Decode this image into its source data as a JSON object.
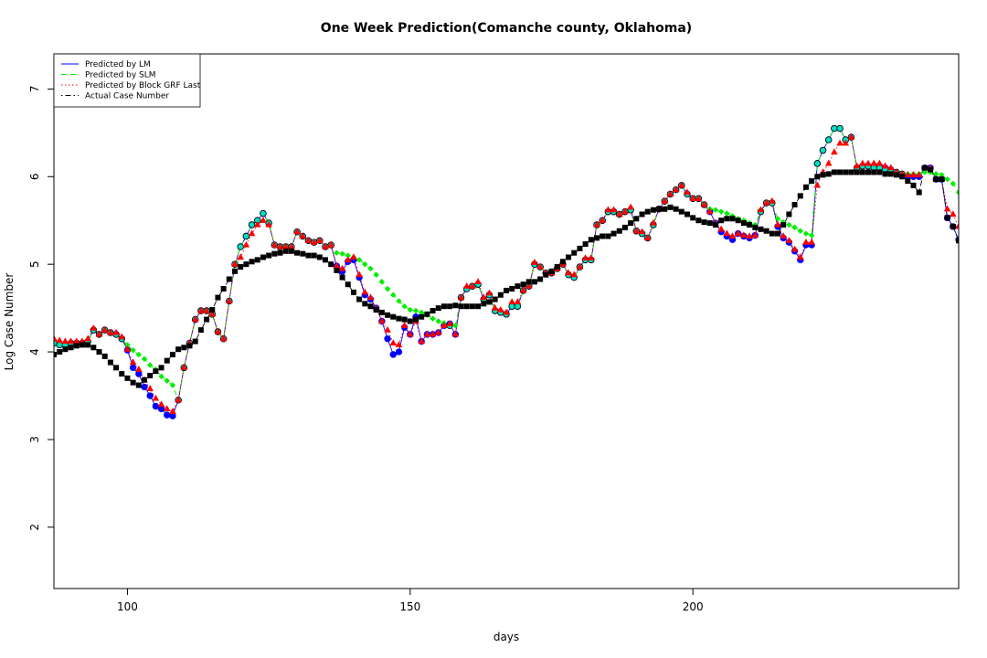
{
  "chart_data": {
    "type": "line",
    "title": "One Week Prediction(Comanche county, Oklahoma)",
    "xlabel": "days",
    "ylabel": "Log Case Number",
    "xlim": [
      87,
      247
    ],
    "ylim": [
      1.3,
      7.4
    ],
    "xticks": [
      100,
      150,
      200
    ],
    "yticks": [
      2,
      3,
      4,
      5,
      6,
      7
    ],
    "legend_position": "top-left",
    "legend": [
      {
        "name": "Predicted by LM",
        "color": "#0000ff",
        "dash": "solid"
      },
      {
        "name": "Predicted by SLM",
        "color": "#00ee00",
        "dash": "dashed"
      },
      {
        "name": "Predicted by Block GRF Last",
        "color": "#ff0000",
        "dash": "dotted"
      },
      {
        "name": "Actual Case Number",
        "color": "#000000",
        "dash": "dotdash"
      }
    ],
    "x": [
      87,
      88,
      89,
      90,
      91,
      92,
      93,
      94,
      95,
      96,
      97,
      98,
      99,
      100,
      101,
      102,
      103,
      104,
      105,
      106,
      107,
      108,
      109,
      110,
      111,
      112,
      113,
      114,
      115,
      116,
      117,
      118,
      119,
      120,
      121,
      122,
      123,
      124,
      125,
      126,
      127,
      128,
      129,
      130,
      131,
      132,
      133,
      134,
      135,
      136,
      137,
      138,
      139,
      140,
      141,
      142,
      143,
      144,
      145,
      146,
      147,
      148,
      149,
      150,
      151,
      152,
      153,
      154,
      155,
      156,
      157,
      158,
      159,
      160,
      161,
      162,
      163,
      164,
      165,
      166,
      167,
      168,
      169,
      170,
      171,
      172,
      173,
      174,
      175,
      176,
      177,
      178,
      179,
      180,
      181,
      182,
      183,
      184,
      185,
      186,
      187,
      188,
      189,
      190,
      191,
      192,
      193,
      194,
      195,
      196,
      197,
      198,
      199,
      200,
      201,
      202,
      203,
      204,
      205,
      206,
      207,
      208,
      209,
      210,
      211,
      212,
      213,
      214,
      215,
      216,
      217,
      218,
      219,
      220,
      221,
      222,
      223,
      224,
      225,
      226,
      227,
      228,
      229,
      230,
      231,
      232,
      233,
      234,
      235,
      236,
      237,
      238,
      239,
      240,
      241,
      242,
      243,
      244,
      245,
      246,
      247
    ],
    "series": [
      {
        "name": "Predicted by LM",
        "values": [
          4.1,
          4.08,
          4.08,
          4.1,
          4.1,
          4.1,
          4.12,
          4.25,
          4.2,
          4.25,
          4.22,
          4.2,
          4.15,
          4.02,
          3.82,
          3.75,
          3.6,
          3.5,
          3.38,
          3.35,
          3.28,
          3.27,
          3.45,
          3.82,
          4.1,
          4.37,
          4.47,
          4.47,
          4.43,
          4.23,
          4.15,
          4.58,
          5.0,
          5.2,
          5.32,
          5.45,
          5.5,
          5.58,
          5.47,
          5.22,
          5.2,
          5.2,
          5.2,
          5.37,
          5.32,
          5.27,
          5.25,
          5.27,
          5.2,
          5.22,
          4.98,
          4.92,
          5.03,
          5.05,
          4.85,
          4.65,
          4.6,
          4.5,
          4.35,
          4.15,
          3.97,
          4.0,
          4.28,
          4.2,
          4.4,
          4.12,
          4.2,
          4.2,
          4.22,
          4.3,
          4.32,
          4.2,
          4.62,
          4.72,
          4.75,
          4.77,
          4.6,
          4.65,
          4.47,
          4.45,
          4.43,
          4.52,
          4.52,
          4.7,
          4.75,
          5.0,
          4.97,
          4.9,
          4.9,
          4.95,
          5.0,
          4.88,
          4.85,
          4.97,
          5.05,
          5.05,
          5.45,
          5.5,
          5.6,
          5.6,
          5.57,
          5.6,
          5.62,
          5.38,
          5.35,
          5.3,
          5.45,
          5.63,
          5.72,
          5.8,
          5.85,
          5.9,
          5.8,
          5.75,
          5.75,
          5.68,
          5.6,
          5.47,
          5.37,
          5.32,
          5.28,
          5.35,
          5.32,
          5.3,
          5.33,
          5.6,
          5.7,
          5.7,
          5.43,
          5.3,
          5.25,
          5.15,
          5.05,
          5.22,
          5.22,
          6.15,
          6.3,
          6.42,
          6.55,
          6.55,
          6.42,
          6.45,
          6.1,
          6.12,
          6.12,
          6.12,
          6.12,
          6.1,
          6.08,
          6.05,
          6.02,
          6.0,
          6.0,
          6.0,
          6.1,
          6.1,
          5.97,
          5.97,
          5.53,
          5.43,
          5.28
        ]
      },
      {
        "name": "Predicted by SLM",
        "values": [
          4.1,
          4.08,
          4.08,
          4.1,
          4.1,
          4.1,
          4.12,
          4.25,
          4.2,
          4.25,
          4.22,
          4.2,
          4.15,
          4.08,
          4.02,
          3.97,
          3.92,
          3.85,
          3.8,
          3.72,
          3.67,
          3.62,
          3.45,
          3.82,
          4.1,
          4.37,
          4.47,
          4.47,
          4.43,
          4.23,
          4.15,
          4.58,
          5.0,
          5.2,
          5.32,
          5.45,
          5.5,
          5.58,
          5.47,
          5.22,
          5.2,
          5.2,
          5.2,
          5.37,
          5.32,
          5.27,
          5.25,
          5.27,
          5.2,
          5.22,
          5.13,
          5.12,
          5.1,
          5.08,
          5.05,
          5.0,
          4.95,
          4.88,
          4.8,
          4.72,
          4.65,
          4.58,
          4.52,
          4.48,
          4.47,
          4.45,
          4.42,
          4.38,
          4.35,
          4.33,
          4.3,
          4.3,
          4.62,
          4.72,
          4.75,
          4.77,
          4.6,
          4.65,
          4.47,
          4.45,
          4.43,
          4.52,
          4.52,
          4.7,
          4.75,
          5.0,
          4.97,
          4.9,
          4.9,
          4.95,
          5.0,
          4.88,
          4.85,
          4.97,
          5.05,
          5.05,
          5.45,
          5.5,
          5.6,
          5.6,
          5.57,
          5.6,
          5.62,
          5.38,
          5.35,
          5.3,
          5.45,
          5.63,
          5.72,
          5.8,
          5.85,
          5.9,
          5.8,
          5.75,
          5.75,
          5.68,
          5.63,
          5.62,
          5.6,
          5.58,
          5.55,
          5.52,
          5.5,
          5.47,
          5.45,
          5.6,
          5.7,
          5.7,
          5.52,
          5.48,
          5.45,
          5.42,
          5.38,
          5.35,
          5.33,
          6.15,
          6.3,
          6.42,
          6.55,
          6.55,
          6.42,
          6.45,
          6.1,
          6.12,
          6.12,
          6.1,
          6.1,
          6.08,
          6.07,
          6.05,
          6.03,
          6.03,
          6.03,
          6.03,
          6.05,
          6.05,
          6.03,
          6.02,
          5.97,
          5.92,
          5.82
        ]
      },
      {
        "name": "Predicted by Block GRF Last",
        "values": [
          4.15,
          4.13,
          4.12,
          4.12,
          4.12,
          4.12,
          4.15,
          4.27,
          4.2,
          4.25,
          4.22,
          4.22,
          4.17,
          4.03,
          3.88,
          3.8,
          3.68,
          3.58,
          3.47,
          3.4,
          3.35,
          3.32,
          3.45,
          3.82,
          4.1,
          4.37,
          4.47,
          4.47,
          4.43,
          4.23,
          4.15,
          4.58,
          5.0,
          5.08,
          5.22,
          5.35,
          5.45,
          5.5,
          5.45,
          5.22,
          5.2,
          5.2,
          5.2,
          5.37,
          5.32,
          5.27,
          5.25,
          5.27,
          5.2,
          5.22,
          4.98,
          4.95,
          5.05,
          5.08,
          4.88,
          4.68,
          4.62,
          4.5,
          4.35,
          4.25,
          4.1,
          4.08,
          4.3,
          4.2,
          4.35,
          4.12,
          4.2,
          4.2,
          4.22,
          4.3,
          4.32,
          4.2,
          4.62,
          4.75,
          4.75,
          4.8,
          4.62,
          4.67,
          4.5,
          4.48,
          4.45,
          4.57,
          4.57,
          4.7,
          4.75,
          5.02,
          4.97,
          4.9,
          4.9,
          4.95,
          5.0,
          4.9,
          4.88,
          4.97,
          5.07,
          5.07,
          5.45,
          5.5,
          5.62,
          5.62,
          5.57,
          5.6,
          5.65,
          5.38,
          5.37,
          5.3,
          5.47,
          5.63,
          5.72,
          5.8,
          5.85,
          5.9,
          5.82,
          5.75,
          5.75,
          5.68,
          5.6,
          5.47,
          5.4,
          5.35,
          5.32,
          5.35,
          5.33,
          5.32,
          5.33,
          5.62,
          5.7,
          5.72,
          5.45,
          5.32,
          5.27,
          5.17,
          5.08,
          5.25,
          5.25,
          5.9,
          6.05,
          6.15,
          6.28,
          6.38,
          6.38,
          6.45,
          6.12,
          6.15,
          6.15,
          6.15,
          6.15,
          6.12,
          6.1,
          6.05,
          6.03,
          6.02,
          6.02,
          6.02,
          6.1,
          6.1,
          5.97,
          5.97,
          5.63,
          5.57,
          5.43
        ]
      },
      {
        "name": "Actual Case Number",
        "values": [
          3.97,
          4.0,
          4.03,
          4.05,
          4.07,
          4.08,
          4.08,
          4.05,
          4.0,
          3.95,
          3.88,
          3.82,
          3.75,
          3.7,
          3.65,
          3.62,
          3.68,
          3.73,
          3.78,
          3.82,
          3.9,
          3.97,
          4.03,
          4.05,
          4.07,
          4.12,
          4.25,
          4.37,
          4.48,
          4.62,
          4.72,
          4.83,
          4.92,
          4.97,
          5.0,
          5.03,
          5.05,
          5.08,
          5.1,
          5.12,
          5.13,
          5.15,
          5.15,
          5.13,
          5.12,
          5.1,
          5.1,
          5.08,
          5.05,
          5.0,
          4.93,
          4.85,
          4.77,
          4.68,
          4.6,
          4.55,
          4.52,
          4.48,
          4.45,
          4.42,
          4.4,
          4.38,
          4.37,
          4.35,
          4.37,
          4.4,
          4.43,
          4.47,
          4.5,
          4.52,
          4.52,
          4.53,
          4.52,
          4.52,
          4.52,
          4.52,
          4.55,
          4.57,
          4.6,
          4.65,
          4.7,
          4.72,
          4.75,
          4.77,
          4.8,
          4.8,
          4.83,
          4.88,
          4.92,
          4.97,
          5.03,
          5.08,
          5.13,
          5.18,
          5.23,
          5.28,
          5.3,
          5.32,
          5.32,
          5.35,
          5.38,
          5.42,
          5.47,
          5.52,
          5.57,
          5.6,
          5.62,
          5.63,
          5.63,
          5.65,
          5.63,
          5.6,
          5.57,
          5.53,
          5.5,
          5.48,
          5.47,
          5.45,
          5.5,
          5.52,
          5.52,
          5.5,
          5.47,
          5.45,
          5.42,
          5.4,
          5.38,
          5.35,
          5.35,
          5.45,
          5.57,
          5.68,
          5.78,
          5.88,
          5.95,
          6.0,
          6.02,
          6.03,
          6.05,
          6.05,
          6.05,
          6.05,
          6.05,
          6.05,
          6.05,
          6.05,
          6.05,
          6.03,
          6.03,
          6.02,
          6.0,
          5.95,
          5.9,
          5.82,
          6.1,
          6.08,
          5.97,
          5.97,
          5.53,
          5.43,
          5.27
        ]
      }
    ]
  }
}
